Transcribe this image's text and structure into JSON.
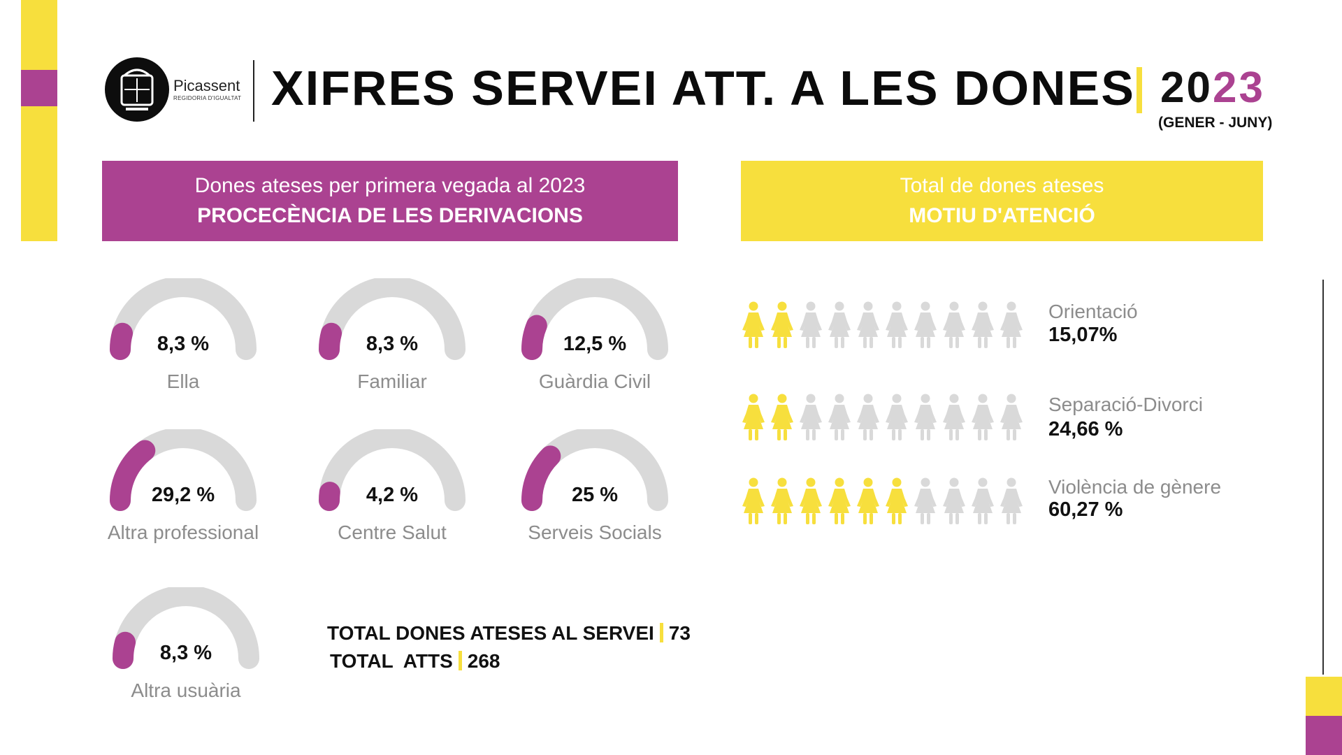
{
  "logo": {
    "name": "Picassent",
    "subtitle": "REGIDORIA D'IGUALTAT"
  },
  "title": "XIFRES SERVEI ATT. A LES DONES",
  "year": {
    "prefix": "20",
    "suffix": "23"
  },
  "period": "(GENER - JUNY)",
  "colors": {
    "purple": "#ab4291",
    "yellow": "#f7df3d",
    "gray": "#d9d9d9"
  },
  "left_section": {
    "line1": "Dones ateses per primera vegada al 2023",
    "line2": "PROCECÈNCIA DE LES DERIVACIONS"
  },
  "right_section": {
    "line1": "Total de dones ateses",
    "line2": "MOTIU D'ATENCIÓ"
  },
  "totals": {
    "dones_label": "TOTAL DONES ATESES AL SERVEI",
    "dones_value": "73",
    "atts_label": "TOTAL  ATTS",
    "atts_value": "268"
  },
  "chart_data": [
    {
      "type": "gauge",
      "items": [
        {
          "label": "Ella",
          "value": 8.3,
          "display": "8,3 %"
        },
        {
          "label": "Familiar",
          "value": 8.3,
          "display": "8,3 %"
        },
        {
          "label": "Guàrdia Civil",
          "value": 12.5,
          "display": "12,5 %"
        },
        {
          "label": "Altra professional",
          "value": 29.2,
          "display": "29,2 %"
        },
        {
          "label": "Centre Salut",
          "value": 4.2,
          "display": "4,2 %"
        },
        {
          "label": "Serveis Socials",
          "value": 25,
          "display": "25 %"
        },
        {
          "label": "Altra usuària",
          "value": 8.3,
          "display": "8,3 %"
        }
      ]
    },
    {
      "type": "pictogram",
      "icon": "woman-icon",
      "total_icons": 10,
      "items": [
        {
          "label": "Orientació",
          "value": 15.07,
          "display": "15,07%",
          "filled_icons": 2
        },
        {
          "label": "Separació-Divorci",
          "value": 24.66,
          "display": "24,66 %",
          "filled_icons": 2
        },
        {
          "label": "Violència de gènere",
          "value": 60.27,
          "display": "60,27 %",
          "filled_icons": 6
        }
      ]
    }
  ]
}
